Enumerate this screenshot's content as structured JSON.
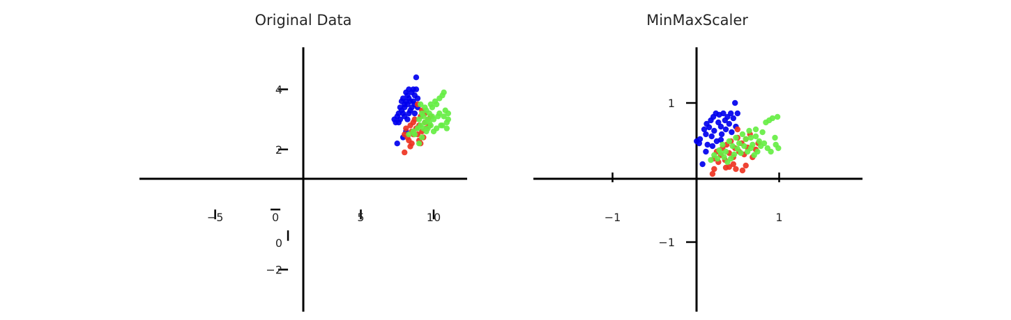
{
  "chart_data": [
    {
      "type": "scatter",
      "title": "Original Data",
      "xlabel": "",
      "ylabel": "",
      "xlim": [
        -10.2,
        12.3
      ],
      "ylim": [
        -3.4,
        5.4
      ],
      "x_ticks": [
        -5,
        0,
        5,
        10
      ],
      "x_tick_labels": [
        "−5",
        "0",
        "5",
        "10"
      ],
      "y_ticks": [
        -2,
        0,
        2,
        4
      ],
      "y_tick_labels": [
        "−2",
        "0",
        "2",
        "4"
      ],
      "grid": false,
      "spines": "centered at origin",
      "series": [
        {
          "color": "#0000ee",
          "points": [
            [
              7.3,
              3.0
            ],
            [
              7.4,
              2.9
            ],
            [
              7.5,
              3.1
            ],
            [
              7.6,
              3.2
            ],
            [
              7.7,
              3.0
            ],
            [
              7.8,
              3.3
            ],
            [
              7.8,
              3.6
            ],
            [
              7.9,
              3.7
            ],
            [
              8.0,
              3.4
            ],
            [
              8.0,
              3.5
            ],
            [
              8.1,
              3.9
            ],
            [
              8.1,
              3.6
            ],
            [
              8.2,
              3.8
            ],
            [
              8.2,
              3.5
            ],
            [
              8.3,
              4.0
            ],
            [
              8.3,
              3.7
            ],
            [
              8.4,
              3.6
            ],
            [
              8.4,
              3.3
            ],
            [
              8.5,
              3.9
            ],
            [
              8.5,
              3.4
            ],
            [
              8.6,
              4.0
            ],
            [
              8.6,
              3.6
            ],
            [
              8.7,
              3.5
            ],
            [
              8.7,
              3.8
            ],
            [
              8.8,
              4.4
            ],
            [
              8.8,
              4.0
            ],
            [
              8.9,
              3.7
            ],
            [
              7.9,
              3.2
            ],
            [
              8.0,
              3.1
            ],
            [
              8.9,
              3.4
            ],
            [
              7.6,
              2.9
            ],
            [
              7.5,
              2.2
            ],
            [
              7.9,
              2.4
            ],
            [
              8.1,
              2.6
            ],
            [
              8.2,
              3.0
            ],
            [
              8.3,
              3.2
            ],
            [
              8.7,
              3.2
            ],
            [
              7.7,
              3.4
            ]
          ]
        },
        {
          "color": "#ee3322",
          "points": [
            [
              8.0,
              2.5
            ],
            [
              8.1,
              2.7
            ],
            [
              8.2,
              2.4
            ],
            [
              8.3,
              2.3
            ],
            [
              8.4,
              2.8
            ],
            [
              8.5,
              2.6
            ],
            [
              8.6,
              2.9
            ],
            [
              8.7,
              3.0
            ],
            [
              8.8,
              2.7
            ],
            [
              8.9,
              2.5
            ],
            [
              9.0,
              2.8
            ],
            [
              9.1,
              3.1
            ],
            [
              9.2,
              2.6
            ],
            [
              9.3,
              2.4
            ],
            [
              9.4,
              2.9
            ],
            [
              9.5,
              2.7
            ],
            [
              9.6,
              3.0
            ],
            [
              9.7,
              2.8
            ],
            [
              8.0,
              1.9
            ],
            [
              8.5,
              2.2
            ],
            [
              9.0,
              2.3
            ],
            [
              9.2,
              3.3
            ],
            [
              8.9,
              3.5
            ],
            [
              9.4,
              3.2
            ],
            [
              8.6,
              2.5
            ],
            [
              9.8,
              3.1
            ],
            [
              8.4,
              2.1
            ],
            [
              9.1,
              2.2
            ]
          ]
        },
        {
          "color": "#66ee44",
          "points": [
            [
              8.9,
              2.7
            ],
            [
              9.0,
              3.0
            ],
            [
              9.1,
              2.8
            ],
            [
              9.2,
              3.2
            ],
            [
              9.3,
              3.1
            ],
            [
              9.4,
              2.9
            ],
            [
              9.5,
              3.3
            ],
            [
              9.6,
              3.0
            ],
            [
              9.7,
              3.2
            ],
            [
              9.8,
              2.8
            ],
            [
              9.9,
              3.4
            ],
            [
              10.0,
              3.0
            ],
            [
              10.1,
              3.6
            ],
            [
              10.2,
              3.5
            ],
            [
              10.3,
              3.1
            ],
            [
              10.4,
              3.7
            ],
            [
              10.5,
              2.8
            ],
            [
              10.6,
              3.8
            ],
            [
              10.7,
              3.9
            ],
            [
              10.8,
              3.3
            ],
            [
              11.0,
              3.2
            ],
            [
              10.9,
              2.9
            ],
            [
              9.5,
              2.6
            ],
            [
              9.2,
              2.4
            ],
            [
              8.7,
              2.5
            ],
            [
              9.0,
              2.2
            ],
            [
              9.6,
              2.7
            ],
            [
              9.8,
              3.5
            ],
            [
              10.0,
              2.6
            ],
            [
              10.2,
              2.7
            ],
            [
              11.0,
              3.0
            ],
            [
              10.7,
              3.1
            ],
            [
              9.4,
              3.4
            ],
            [
              9.9,
              3.1
            ],
            [
              10.4,
              3.2
            ],
            [
              8.6,
              2.6
            ],
            [
              8.3,
              2.5
            ],
            [
              9.1,
              3.5
            ],
            [
              10.6,
              2.8
            ],
            [
              9.7,
              2.9
            ],
            [
              10.9,
              2.7
            ],
            [
              9.3,
              2.7
            ]
          ]
        }
      ]
    },
    {
      "type": "scatter",
      "title": "MinMaxScaler",
      "xlabel": "",
      "ylabel": "",
      "xlim": [
        -1.95,
        2.0
      ],
      "ylim": [
        -2.0,
        1.8
      ],
      "x_ticks": [
        -1,
        1
      ],
      "x_tick_labels": [
        "−1",
        "1"
      ],
      "y_ticks": [
        -1,
        1
      ],
      "y_tick_labels": [
        "−1",
        "1"
      ],
      "grid": false,
      "spines": "centered at origin",
      "series": [
        {
          "color": "#0000ee",
          "points": [
            [
              0.01,
              0.45
            ],
            [
              0.04,
              0.42
            ],
            [
              0.05,
              0.48
            ],
            [
              0.08,
              0.12
            ],
            [
              0.1,
              0.62
            ],
            [
              0.12,
              0.55
            ],
            [
              0.13,
              0.7
            ],
            [
              0.14,
              0.4
            ],
            [
              0.16,
              0.65
            ],
            [
              0.18,
              0.75
            ],
            [
              0.19,
              0.52
            ],
            [
              0.21,
              0.8
            ],
            [
              0.22,
              0.6
            ],
            [
              0.24,
              0.85
            ],
            [
              0.25,
              0.45
            ],
            [
              0.27,
              0.72
            ],
            [
              0.28,
              0.83
            ],
            [
              0.3,
              0.66
            ],
            [
              0.31,
              0.55
            ],
            [
              0.33,
              0.85
            ],
            [
              0.35,
              0.75
            ],
            [
              0.36,
              0.62
            ],
            [
              0.38,
              0.8
            ],
            [
              0.4,
              0.7
            ],
            [
              0.42,
              0.85
            ],
            [
              0.43,
              0.58
            ],
            [
              0.45,
              0.78
            ],
            [
              0.47,
              1.0
            ],
            [
              0.48,
              0.66
            ],
            [
              0.5,
              0.85
            ],
            [
              0.3,
              0.47
            ],
            [
              0.2,
              0.38
            ],
            [
              0.12,
              0.3
            ]
          ]
        },
        {
          "color": "#ee3322",
          "points": [
            [
              0.22,
              0.2
            ],
            [
              0.25,
              0.3
            ],
            [
              0.27,
              0.15
            ],
            [
              0.3,
              0.25
            ],
            [
              0.32,
              0.35
            ],
            [
              0.35,
              0.18
            ],
            [
              0.37,
              0.4
            ],
            [
              0.4,
              0.28
            ],
            [
              0.42,
              0.45
            ],
            [
              0.45,
              0.22
            ],
            [
              0.47,
              0.35
            ],
            [
              0.5,
              0.5
            ],
            [
              0.52,
              0.3
            ],
            [
              0.55,
              0.42
            ],
            [
              0.58,
              0.26
            ],
            [
              0.6,
              0.48
            ],
            [
              0.62,
              0.36
            ],
            [
              0.65,
              0.55
            ],
            [
              0.22,
              0.05
            ],
            [
              0.36,
              0.07
            ],
            [
              0.48,
              0.05
            ],
            [
              0.56,
              0.03
            ],
            [
              0.6,
              0.1
            ],
            [
              0.68,
              0.22
            ],
            [
              0.72,
              0.33
            ],
            [
              0.75,
              0.42
            ],
            [
              0.45,
              0.12
            ],
            [
              0.2,
              -0.02
            ],
            [
              0.5,
              0.62
            ],
            [
              0.4,
              0.08
            ]
          ]
        },
        {
          "color": "#66ee44",
          "points": [
            [
              0.18,
              0.18
            ],
            [
              0.22,
              0.25
            ],
            [
              0.28,
              0.32
            ],
            [
              0.32,
              0.4
            ],
            [
              0.36,
              0.3
            ],
            [
              0.4,
              0.45
            ],
            [
              0.44,
              0.38
            ],
            [
              0.48,
              0.5
            ],
            [
              0.52,
              0.42
            ],
            [
              0.56,
              0.55
            ],
            [
              0.6,
              0.48
            ],
            [
              0.64,
              0.6
            ],
            [
              0.68,
              0.4
            ],
            [
              0.72,
              0.52
            ],
            [
              0.76,
              0.45
            ],
            [
              0.8,
              0.58
            ],
            [
              0.84,
              0.72
            ],
            [
              0.88,
              0.75
            ],
            [
              0.92,
              0.78
            ],
            [
              0.98,
              0.8
            ],
            [
              0.96,
              0.4
            ],
            [
              0.99,
              0.35
            ],
            [
              0.95,
              0.5
            ],
            [
              0.9,
              0.3
            ],
            [
              0.86,
              0.35
            ],
            [
              0.82,
              0.42
            ],
            [
              0.78,
              0.38
            ],
            [
              0.74,
              0.3
            ],
            [
              0.7,
              0.25
            ],
            [
              0.66,
              0.35
            ],
            [
              0.62,
              0.3
            ],
            [
              0.58,
              0.38
            ],
            [
              0.54,
              0.28
            ],
            [
              0.5,
              0.34
            ],
            [
              0.46,
              0.26
            ],
            [
              0.42,
              0.2
            ],
            [
              0.38,
              0.15
            ],
            [
              0.34,
              0.22
            ],
            [
              0.3,
              0.28
            ],
            [
              0.26,
              0.2
            ],
            [
              0.72,
              0.62
            ],
            [
              0.66,
              0.5
            ]
          ]
        }
      ]
    }
  ]
}
